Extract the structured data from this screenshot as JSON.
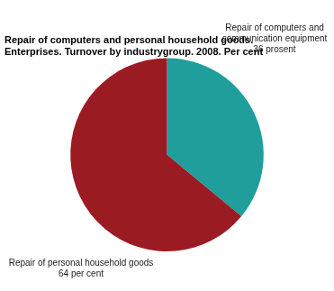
{
  "chart_data": {
    "type": "pie",
    "title": [
      "Repair of computers and personal household goods.",
      "Enterprises. Turnover by industrygroup. 2008. Per cent"
    ],
    "categories": [
      "Repair of computers and communication equipment",
      "Repair of personal household goods"
    ],
    "values": [
      36,
      64
    ],
    "value_labels": [
      "36 prosent",
      "64 per cent"
    ],
    "colors": [
      "#1f9e9b",
      "#9b1b22"
    ],
    "data_labels": true,
    "legend": false
  }
}
